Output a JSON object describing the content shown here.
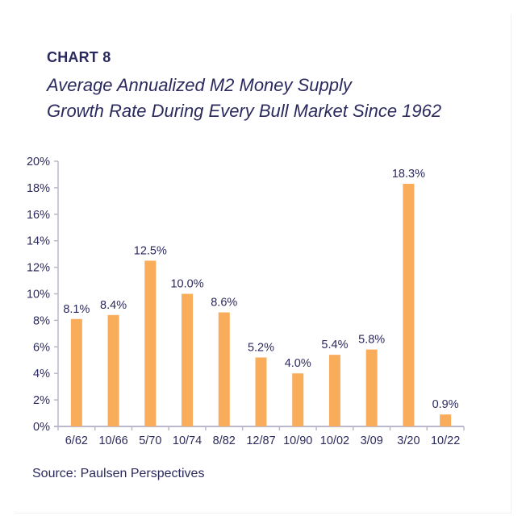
{
  "header": {
    "chart_number": "CHART 8",
    "title_line1": "Average Annualized M2 Money Supply",
    "title_line2": "Growth Rate During Every Bull Market Since 1962"
  },
  "footer": {
    "source": "Source:  Paulsen Perspectives"
  },
  "colors": {
    "bar": "#f9ac59",
    "text": "#2b2a5e",
    "axis": "#b9b8cc"
  },
  "chart_data": {
    "type": "bar",
    "title": "Average Annualized M2 Money Supply Growth Rate During Every Bull Market Since 1962",
    "xlabel": "",
    "ylabel": "",
    "categories": [
      "6/62",
      "10/66",
      "5/70",
      "10/74",
      "8/82",
      "12/87",
      "10/90",
      "10/02",
      "3/09",
      "3/20",
      "10/22"
    ],
    "values": [
      8.1,
      8.4,
      12.5,
      10.0,
      8.6,
      5.2,
      4.0,
      5.4,
      5.8,
      18.3,
      0.9
    ],
    "value_labels": [
      "8.1%",
      "8.4%",
      "12.5%",
      "10.0%",
      "8.6%",
      "5.2%",
      "4.0%",
      "5.4%",
      "5.8%",
      "18.3%",
      "0.9%"
    ],
    "ylim": [
      0,
      20
    ],
    "yticks": [
      0,
      2,
      4,
      6,
      8,
      10,
      12,
      14,
      16,
      18,
      20
    ],
    "ytick_labels": [
      "0%",
      "2%",
      "4%",
      "6%",
      "8%",
      "10%",
      "12%",
      "14%",
      "16%",
      "18%",
      "20%"
    ],
    "grid": false,
    "legend": "none"
  }
}
